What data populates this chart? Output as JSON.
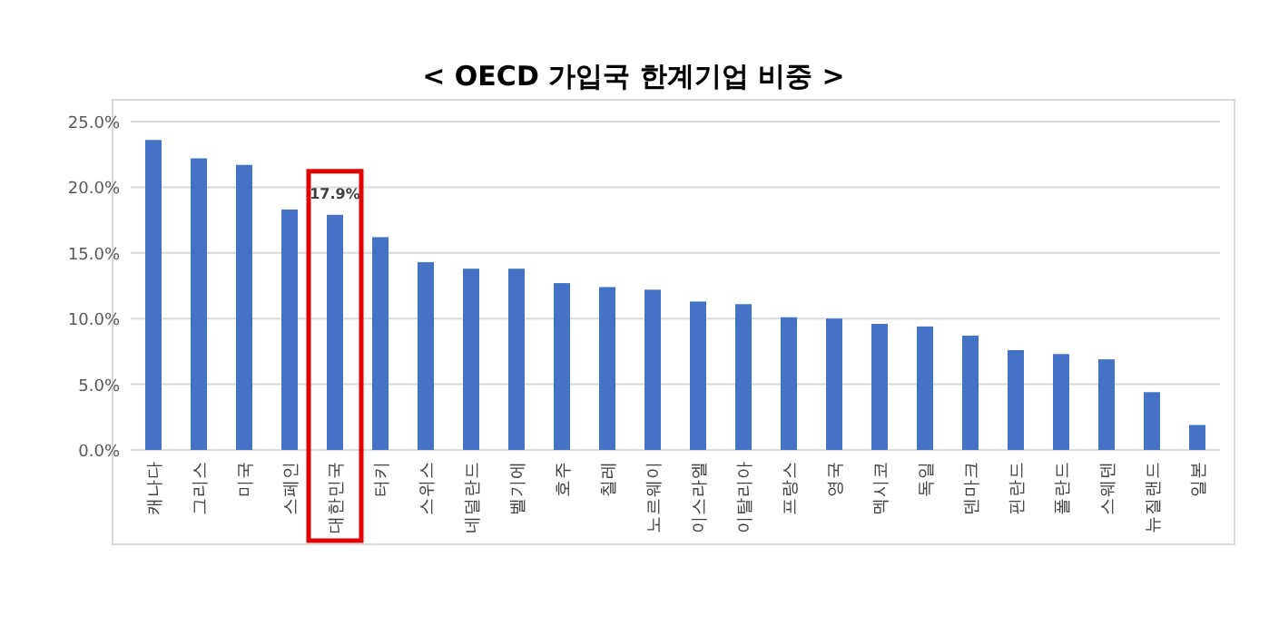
{
  "chart_data": {
    "type": "bar",
    "title": "< OECD 가입국 한계기업 비중 >",
    "categories": [
      "캐나다",
      "그리스",
      "미국",
      "스페인",
      "대한민국",
      "터키",
      "스위스",
      "네덜란드",
      "벨기에",
      "호주",
      "칠레",
      "노르웨이",
      "이스라엘",
      "이탈리아",
      "프랑스",
      "영국",
      "멕시코",
      "독일",
      "덴마크",
      "핀란드",
      "폴란드",
      "스웨덴",
      "뉴질랜드",
      "일본"
    ],
    "values": [
      23.6,
      22.2,
      21.7,
      18.3,
      17.9,
      16.2,
      14.3,
      13.8,
      13.8,
      12.7,
      12.4,
      12.2,
      11.3,
      11.1,
      10.1,
      10.0,
      9.6,
      9.4,
      8.7,
      7.6,
      7.3,
      6.9,
      4.4,
      1.9
    ],
    "value_labels": [
      null,
      null,
      null,
      null,
      "17.9%",
      null,
      null,
      null,
      null,
      null,
      null,
      null,
      null,
      null,
      null,
      null,
      null,
      null,
      null,
      null,
      null,
      null,
      null,
      null
    ],
    "color": "#4472c4",
    "ylim": [
      0,
      25
    ],
    "yticks": [
      {
        "value": 0,
        "label": "0.0%"
      },
      {
        "value": 5,
        "label": "5.0%"
      },
      {
        "value": 10,
        "label": "10.0%"
      },
      {
        "value": 15,
        "label": "15.0%"
      },
      {
        "value": 20,
        "label": "20.0%"
      },
      {
        "value": 25,
        "label": "25.0%"
      }
    ],
    "grid": "y"
  }
}
